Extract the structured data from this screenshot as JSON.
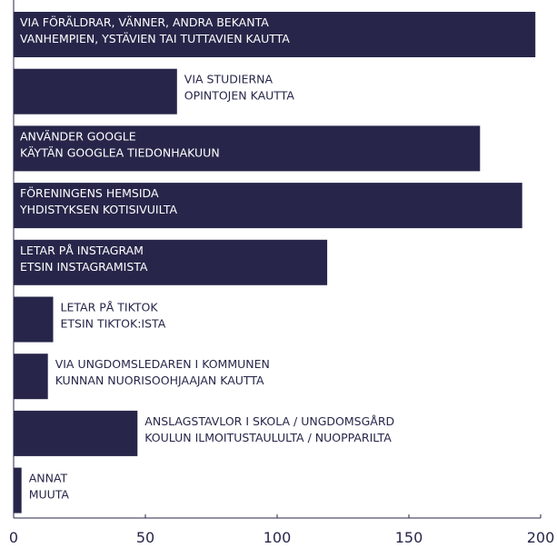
{
  "chart_data": {
    "type": "bar",
    "orientation": "horizontal",
    "categories": [
      [
        "VIA FÖRÄLDRAR, VÄNNER, ANDRA BEKANTA",
        "VANHEMPIEN, YSTÄVIEN TAI TUTTAVIEN KAUTTA"
      ],
      [
        "VIA STUDIERNA",
        "OPINTOJEN KAUTTA"
      ],
      [
        "ANVÄNDER GOOGLE",
        "KÄYTÄN GOOGLEA TIEDONHAKUUN"
      ],
      [
        "FÖRENINGENS HEMSIDA",
        "YHDISTYKSEN KOTISIVUILTA"
      ],
      [
        "LETAR PÅ INSTAGRAM",
        "ETSIN INSTAGRAMISTA"
      ],
      [
        "LETAR PÅ TIKTOK",
        "ETSIN TIKTOK:ISTA"
      ],
      [
        "VIA UNGDOMSLEDAREN I KOMMUNEN",
        "KUNNAN NUORISOOHJAAJAN KAUTTA"
      ],
      [
        "ANSLAGSTAVLOR I SKOLA / UNGDOMSGÅRD",
        "KOULUN ILMOITUSTAULULTA / NUOPPARILTA"
      ],
      [
        "ANNAT",
        "MUUTA"
      ]
    ],
    "values": [
      198,
      62,
      177,
      193,
      119,
      15,
      13,
      47,
      3
    ],
    "color": "#27264a",
    "xlim": [
      0,
      200
    ],
    "xticks": [
      0,
      50,
      100,
      150,
      200
    ]
  }
}
